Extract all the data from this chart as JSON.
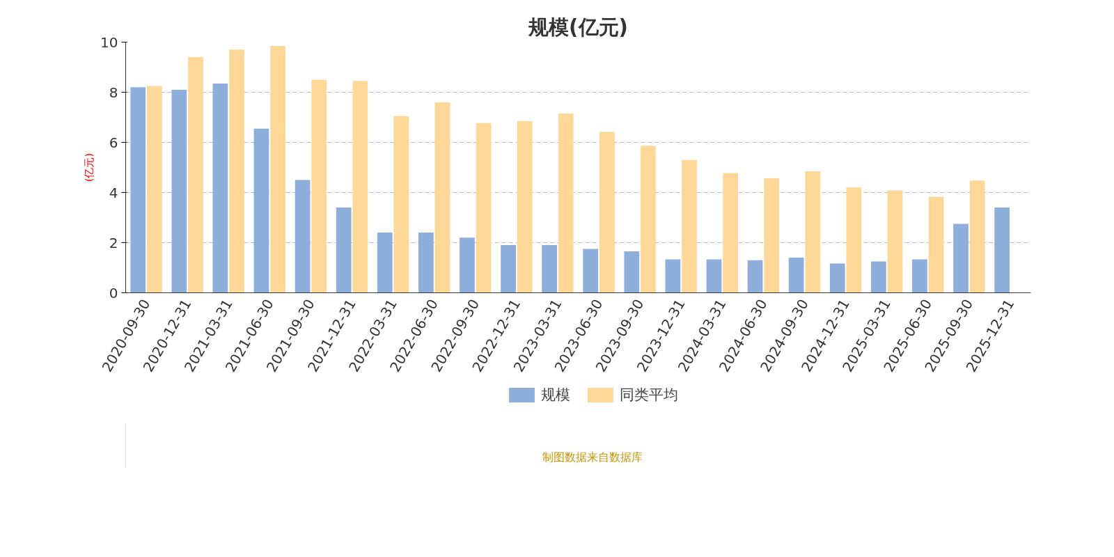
{
  "chart_data": {
    "type": "bar",
    "title": "规模(亿元)",
    "ylabel": "(亿元)",
    "categories": [
      "2020-09-30",
      "2020-12-31",
      "2021-03-31",
      "2021-06-30",
      "2021-09-30",
      "2021-12-31",
      "2022-03-31",
      "2022-06-30",
      "2022-09-30",
      "2022-12-31",
      "2023-03-31",
      "2023-06-30",
      "2023-09-30",
      "2023-12-31",
      "2024-03-31",
      "2024-06-30",
      "2024-09-30",
      "2024-12-31",
      "2025-03-31",
      "2025-06-30",
      "2025-09-30",
      "2025-12-31"
    ],
    "series": [
      {
        "name": "规模",
        "color": "#8eaedb",
        "values": [
          8.2,
          8.1,
          8.35,
          6.55,
          4.5,
          3.4,
          2.4,
          2.4,
          2.2,
          1.9,
          1.9,
          1.75,
          1.65,
          1.33,
          1.33,
          1.3,
          1.4,
          1.17,
          1.25,
          1.33,
          2.75,
          3.4
        ]
      },
      {
        "name": "同类平均",
        "color": "#fed899",
        "values": [
          8.25,
          9.4,
          9.7,
          9.85,
          8.5,
          8.45,
          7.05,
          7.6,
          6.77,
          6.85,
          7.15,
          6.42,
          5.87,
          5.3,
          4.78,
          4.57,
          4.85,
          4.2,
          4.08,
          3.83,
          4.48,
          null
        ]
      }
    ],
    "ylim": [
      0,
      10
    ],
    "yticks": [
      0,
      2,
      4,
      6,
      8,
      10
    ],
    "grid": "y",
    "legend": "bottom",
    "annotations": [
      "制图数据来自数据库"
    ]
  }
}
